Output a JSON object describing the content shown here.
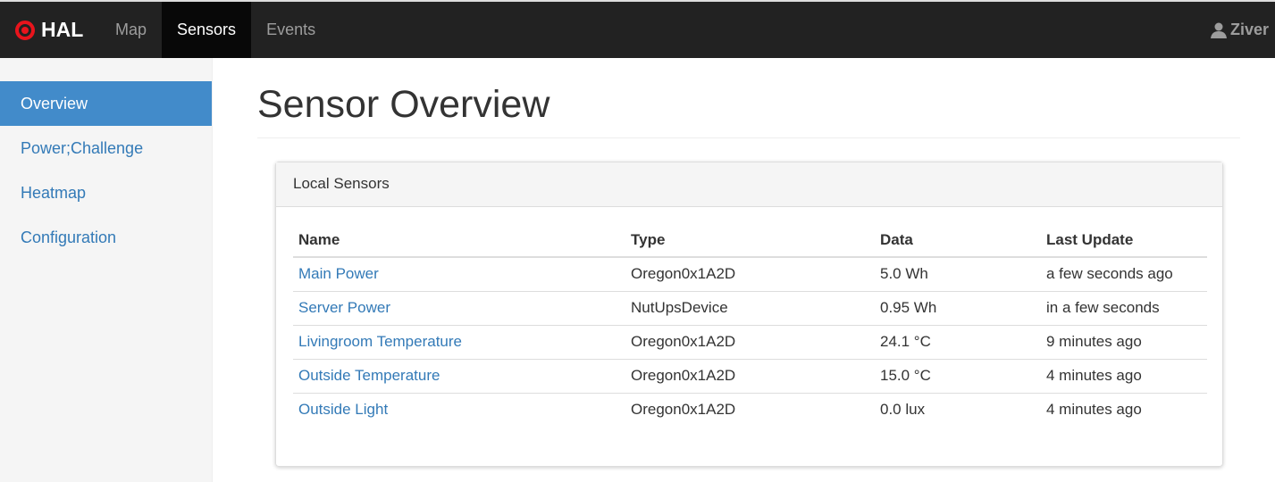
{
  "nav": {
    "brand": "HAL",
    "items": [
      "Map",
      "Sensors",
      "Events"
    ],
    "active": "Sensors",
    "user": "Ziver"
  },
  "sidebar": {
    "items": [
      "Overview",
      "Power;Challenge",
      "Heatmap",
      "Configuration"
    ],
    "active": "Overview"
  },
  "page": {
    "title": "Sensor Overview"
  },
  "panel": {
    "title": "Local Sensors",
    "columns": [
      "Name",
      "Type",
      "Data",
      "Last Update"
    ],
    "rows": [
      [
        "Main Power",
        "Oregon0x1A2D",
        "5.0 Wh",
        "a few seconds ago"
      ],
      [
        "Server Power",
        "NutUpsDevice",
        "0.95 Wh",
        "in a few seconds"
      ],
      [
        "Livingroom Temperature",
        "Oregon0x1A2D",
        "24.1 °C",
        "9 minutes ago"
      ],
      [
        "Outside Temperature",
        "Oregon0x1A2D",
        "15.0 °C",
        "4 minutes ago"
      ],
      [
        "Outside Light",
        "Oregon0x1A2D",
        "0.0 lux",
        "4 minutes ago"
      ]
    ]
  },
  "colors": {
    "brand": "#e8141c",
    "accent": "#428bca",
    "link": "#337ab7"
  }
}
